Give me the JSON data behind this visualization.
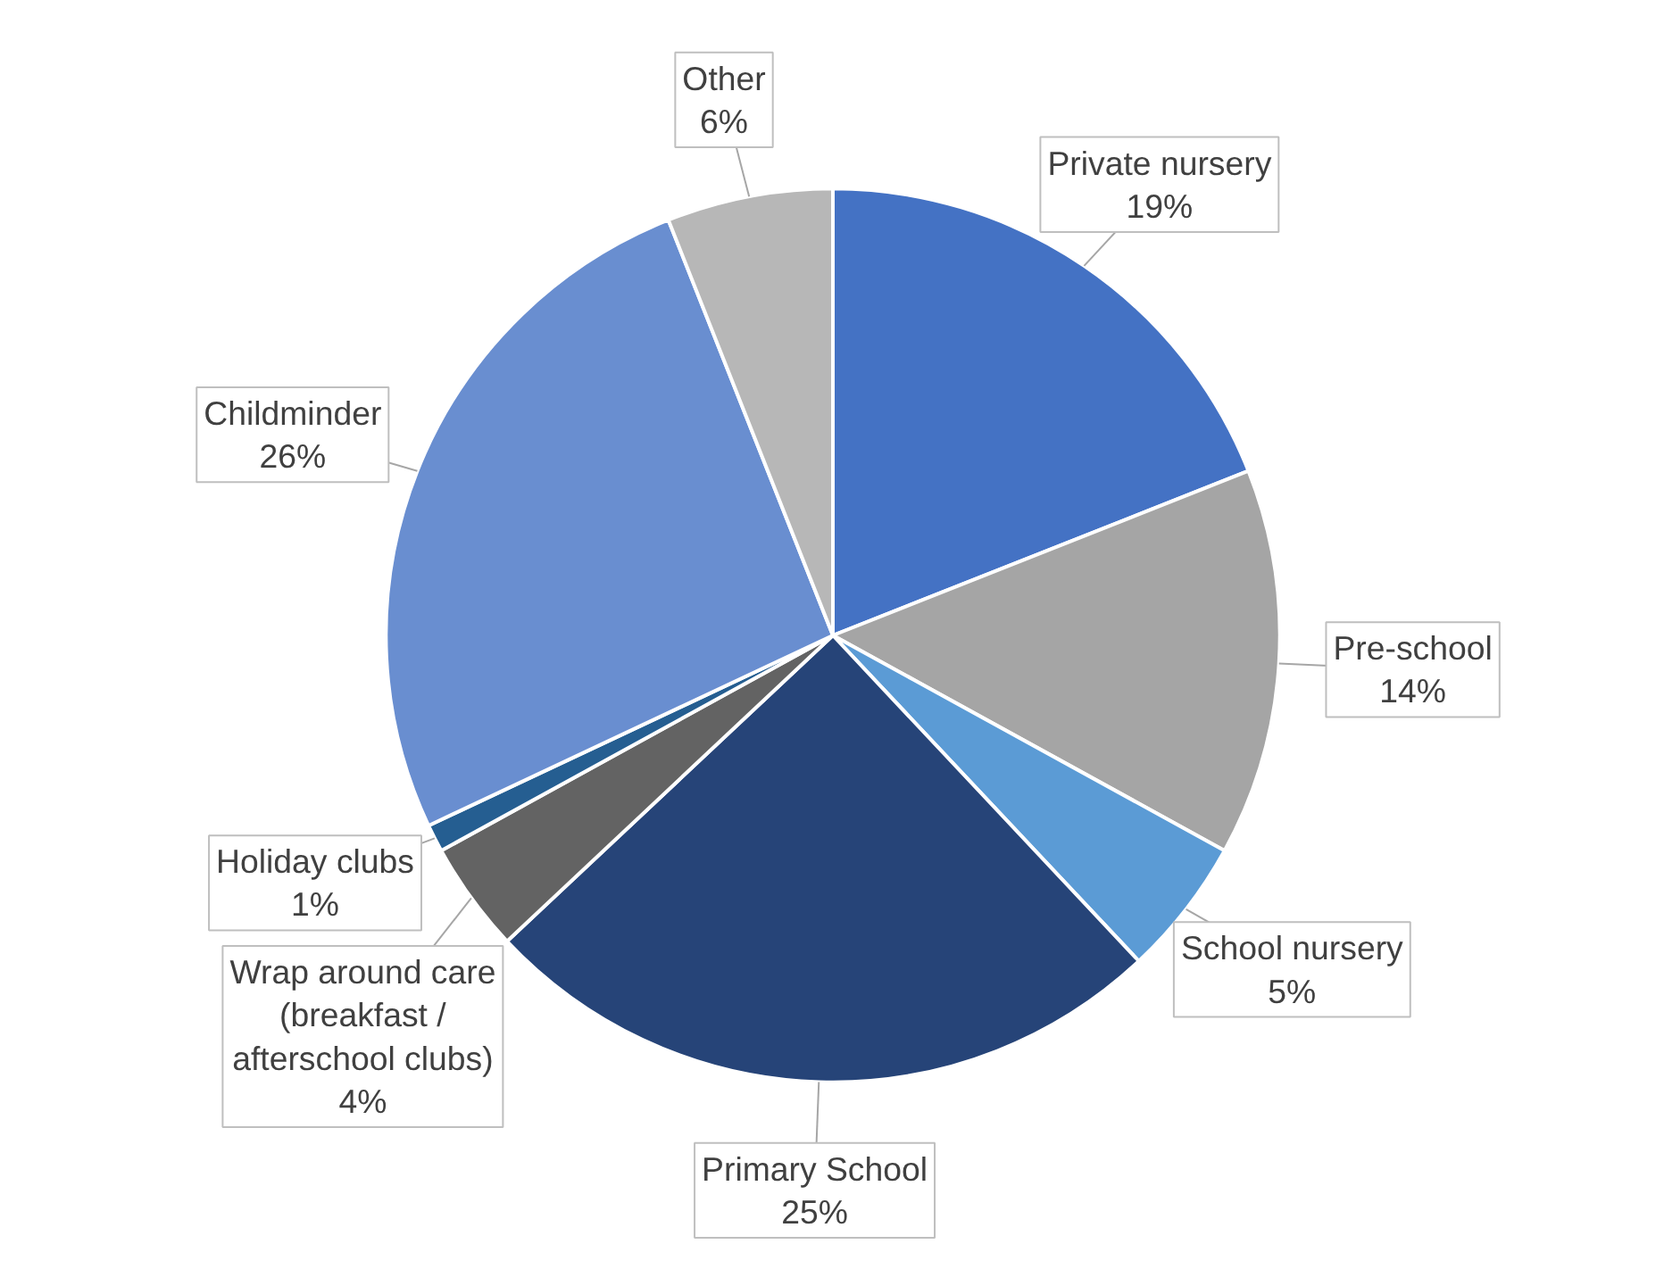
{
  "chart_data": {
    "type": "pie",
    "categories": [
      "Private nursery",
      "Pre-school",
      "School nursery",
      "Primary School",
      "Wrap around care\n(breakfast /\nafterschool clubs)",
      "Holiday clubs",
      "Childminder",
      "Other"
    ],
    "values": [
      19,
      14,
      5,
      25,
      4,
      1,
      26,
      6
    ],
    "value_labels": [
      "19%",
      "14%",
      "5%",
      "25%",
      "4%",
      "1%",
      "26%",
      "6%"
    ],
    "colors": [
      "#4472c4",
      "#a5a5a5",
      "#5b9bd5",
      "#264478",
      "#636363",
      "#255e91",
      "#698ed0",
      "#b7b7b7"
    ]
  }
}
